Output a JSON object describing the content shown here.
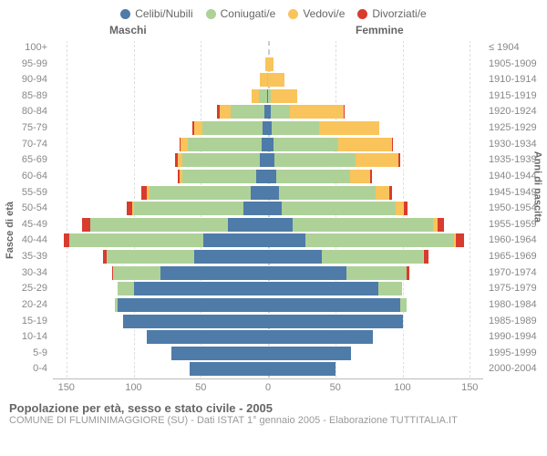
{
  "legend": [
    {
      "label": "Celibi/Nubili",
      "color": "#4f7ba8"
    },
    {
      "label": "Coniugati/e",
      "color": "#aed198"
    },
    {
      "label": "Vedovi/e",
      "color": "#f9c45b"
    },
    {
      "label": "Divorziati/e",
      "color": "#d73c2e"
    }
  ],
  "headers": {
    "male": "Maschi",
    "female": "Femmine"
  },
  "axis_left": "Fasce di età",
  "axis_right": "Anni di nascita",
  "xmax": 160,
  "xticks": [
    150,
    100,
    50,
    0,
    50,
    100,
    150
  ],
  "rows": [
    {
      "age": "100+",
      "year": "≤ 1904",
      "m": [
        0,
        0,
        0,
        0
      ],
      "f": [
        0,
        0,
        0,
        0
      ]
    },
    {
      "age": "95-99",
      "year": "1905-1909",
      "m": [
        0,
        0,
        2,
        0
      ],
      "f": [
        0,
        0,
        4,
        0
      ]
    },
    {
      "age": "90-94",
      "year": "1910-1914",
      "m": [
        0,
        1,
        5,
        0
      ],
      "f": [
        0,
        0,
        12,
        0
      ]
    },
    {
      "age": "85-89",
      "year": "1915-1919",
      "m": [
        1,
        6,
        5,
        0
      ],
      "f": [
        0,
        2,
        20,
        0
      ]
    },
    {
      "age": "80-84",
      "year": "1920-1924",
      "m": [
        3,
        25,
        8,
        2
      ],
      "f": [
        2,
        14,
        40,
        1
      ]
    },
    {
      "age": "75-79",
      "year": "1925-1929",
      "m": [
        4,
        45,
        6,
        1
      ],
      "f": [
        3,
        35,
        45,
        0
      ]
    },
    {
      "age": "70-74",
      "year": "1930-1934",
      "m": [
        5,
        55,
        5,
        1
      ],
      "f": [
        4,
        48,
        40,
        1
      ]
    },
    {
      "age": "65-69",
      "year": "1935-1939",
      "m": [
        6,
        58,
        3,
        2
      ],
      "f": [
        5,
        60,
        32,
        1
      ]
    },
    {
      "age": "60-64",
      "year": "1940-1944",
      "m": [
        9,
        55,
        2,
        1
      ],
      "f": [
        6,
        55,
        15,
        1
      ]
    },
    {
      "age": "55-59",
      "year": "1945-1949",
      "m": [
        13,
        75,
        2,
        4
      ],
      "f": [
        8,
        72,
        10,
        2
      ]
    },
    {
      "age": "50-54",
      "year": "1950-1954",
      "m": [
        18,
        82,
        1,
        4
      ],
      "f": [
        10,
        85,
        6,
        3
      ]
    },
    {
      "age": "45-49",
      "year": "1955-1959",
      "m": [
        30,
        102,
        0,
        6
      ],
      "f": [
        18,
        105,
        3,
        5
      ]
    },
    {
      "age": "40-44",
      "year": "1960-1964",
      "m": [
        48,
        100,
        0,
        4
      ],
      "f": [
        28,
        110,
        2,
        6
      ]
    },
    {
      "age": "35-39",
      "year": "1965-1969",
      "m": [
        55,
        65,
        0,
        3
      ],
      "f": [
        40,
        75,
        1,
        3
      ]
    },
    {
      "age": "30-34",
      "year": "1970-1974",
      "m": [
        80,
        35,
        0,
        1
      ],
      "f": [
        58,
        45,
        0,
        2
      ]
    },
    {
      "age": "25-29",
      "year": "1975-1979",
      "m": [
        100,
        12,
        0,
        0
      ],
      "f": [
        82,
        18,
        0,
        0
      ]
    },
    {
      "age": "20-24",
      "year": "1980-1984",
      "m": [
        112,
        2,
        0,
        0
      ],
      "f": [
        98,
        5,
        0,
        0
      ]
    },
    {
      "age": "15-19",
      "year": "1985-1989",
      "m": [
        108,
        0,
        0,
        0
      ],
      "f": [
        100,
        0,
        0,
        0
      ]
    },
    {
      "age": "10-14",
      "year": "1990-1994",
      "m": [
        90,
        0,
        0,
        0
      ],
      "f": [
        78,
        0,
        0,
        0
      ]
    },
    {
      "age": "5-9",
      "year": "1995-1999",
      "m": [
        72,
        0,
        0,
        0
      ],
      "f": [
        62,
        0,
        0,
        0
      ]
    },
    {
      "age": "0-4",
      "year": "2000-2004",
      "m": [
        58,
        0,
        0,
        0
      ],
      "f": [
        50,
        0,
        0,
        0
      ]
    }
  ],
  "footer": {
    "title": "Popolazione per età, sesso e stato civile - 2005",
    "subtitle": "COMUNE DI FLUMINIMAGGIORE (SU) - Dati ISTAT 1° gennaio 2005 - Elaborazione TUTTITALIA.IT"
  }
}
